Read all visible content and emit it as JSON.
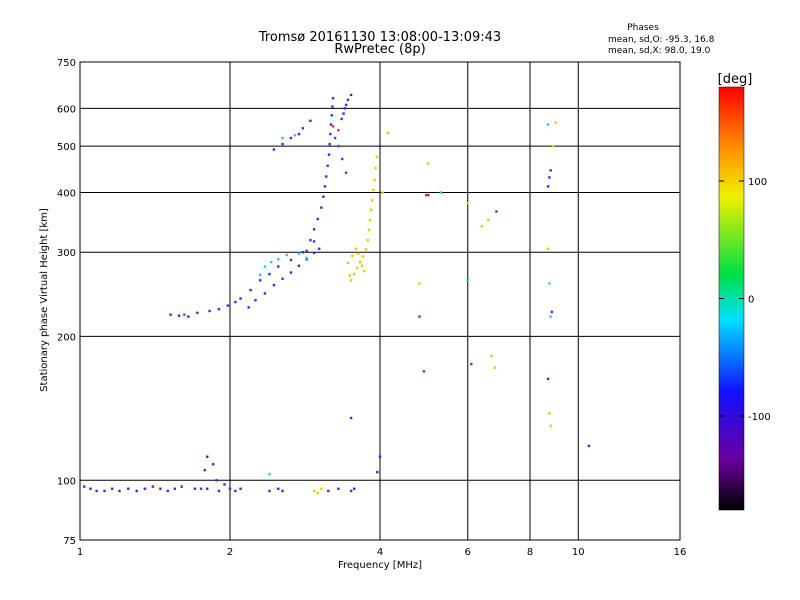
{
  "chart_data": {
    "type": "scatter",
    "title": "Tromsø 20161130 13:08:00-13:09:43",
    "subtitle": "RwPretec (8p)",
    "xlabel": "Frequency [MHz]",
    "ylabel": "Stationary phase Virtual Height [km]",
    "x_scale": "log",
    "y_scale": "log",
    "xlim": [
      1,
      16
    ],
    "ylim": [
      75,
      750
    ],
    "x_ticks": [
      1,
      2,
      4,
      6,
      8,
      10,
      16
    ],
    "y_ticks": [
      75,
      100,
      200,
      300,
      400,
      500,
      600,
      750
    ],
    "grid": true,
    "stats": {
      "title": "Phases",
      "line_o": "mean, sd,O: -95.3, 16.8",
      "line_x": "mean, sd,X:  98.0, 19.0"
    },
    "colorbar": {
      "label": "[deg]",
      "ticks": [
        100,
        0,
        -100
      ],
      "range": [
        -180,
        180
      ],
      "colormap": "rainbow: black→purple→blue→cyan→green→yellow→orange→red"
    },
    "series": [
      {
        "color": "#3030e0",
        "points": [
          [
            1.02,
            97
          ],
          [
            1.05,
            96
          ],
          [
            1.08,
            95
          ],
          [
            1.12,
            95
          ],
          [
            1.16,
            96
          ],
          [
            1.2,
            95
          ],
          [
            1.25,
            96
          ],
          [
            1.3,
            95
          ],
          [
            1.35,
            96
          ],
          [
            1.4,
            97
          ],
          [
            1.45,
            96
          ],
          [
            1.5,
            95
          ],
          [
            1.55,
            96
          ],
          [
            1.6,
            97
          ],
          [
            1.7,
            96
          ],
          [
            1.8,
            96
          ],
          [
            1.9,
            95
          ],
          [
            2.0,
            96
          ],
          [
            2.05,
            95
          ],
          [
            1.52,
            222
          ],
          [
            1.58,
            221
          ],
          [
            1.65,
            220
          ],
          [
            1.72,
            224
          ],
          [
            1.82,
            226
          ],
          [
            1.9,
            228
          ],
          [
            1.98,
            232
          ],
          [
            2.05,
            236
          ],
          [
            2.1,
            240
          ],
          [
            2.18,
            230
          ],
          [
            2.25,
            238
          ],
          [
            2.35,
            246
          ],
          [
            2.45,
            256
          ],
          [
            2.55,
            264
          ],
          [
            2.65,
            272
          ],
          [
            2.75,
            281
          ],
          [
            2.85,
            290
          ],
          [
            2.95,
            299
          ],
          [
            3.02,
            305
          ],
          [
            2.2,
            250
          ],
          [
            2.3,
            262
          ],
          [
            2.4,
            270
          ],
          [
            2.5,
            280
          ],
          [
            2.65,
            289
          ],
          [
            2.8,
            300
          ],
          [
            2.95,
            316
          ],
          [
            2.85,
            302
          ],
          [
            2.9,
            318
          ],
          [
            2.95,
            335
          ],
          [
            3.0,
            352
          ],
          [
            3.05,
            372
          ],
          [
            3.08,
            392
          ],
          [
            3.1,
            412
          ],
          [
            3.12,
            432
          ],
          [
            3.14,
            455
          ],
          [
            3.16,
            480
          ],
          [
            3.17,
            505
          ],
          [
            3.18,
            530
          ],
          [
            3.19,
            555
          ],
          [
            3.2,
            580
          ],
          [
            3.21,
            605
          ],
          [
            3.22,
            630
          ],
          [
            3.35,
            570
          ],
          [
            3.4,
            600
          ],
          [
            3.45,
            625
          ],
          [
            3.5,
            640
          ],
          [
            3.42,
            610
          ],
          [
            3.38,
            585
          ],
          [
            2.45,
            492
          ],
          [
            2.55,
            505
          ],
          [
            2.65,
            520
          ],
          [
            2.75,
            530
          ],
          [
            2.9,
            565
          ],
          [
            2.8,
            545
          ],
          [
            1.8,
            112
          ],
          [
            1.85,
            108
          ],
          [
            1.78,
            105
          ],
          [
            1.88,
            100
          ],
          [
            1.95,
            98
          ],
          [
            2.1,
            96
          ],
          [
            2.4,
            95
          ],
          [
            2.5,
            96
          ],
          [
            2.55,
            95
          ],
          [
            3.15,
            95
          ],
          [
            3.3,
            96
          ],
          [
            3.5,
            95
          ],
          [
            3.55,
            96
          ],
          [
            3.5,
            135
          ],
          [
            4.0,
            112
          ],
          [
            3.95,
            104
          ],
          [
            8.7,
            412
          ],
          [
            8.75,
            430
          ],
          [
            8.8,
            445
          ],
          [
            8.85,
            225
          ],
          [
            8.7,
            163
          ],
          [
            10.5,
            118
          ]
        ]
      },
      {
        "color": "#e8c800",
        "points": [
          [
            3.5,
            262
          ],
          [
            3.55,
            270
          ],
          [
            3.6,
            278
          ],
          [
            3.65,
            286
          ],
          [
            3.7,
            294
          ],
          [
            3.75,
            304
          ],
          [
            3.78,
            318
          ],
          [
            3.8,
            334
          ],
          [
            3.82,
            350
          ],
          [
            3.84,
            368
          ],
          [
            3.86,
            385
          ],
          [
            3.88,
            405
          ],
          [
            3.9,
            425
          ],
          [
            3.92,
            450
          ],
          [
            3.94,
            475
          ],
          [
            3.45,
            285
          ],
          [
            3.52,
            295
          ],
          [
            3.58,
            305
          ],
          [
            3.62,
            298
          ],
          [
            3.68,
            281
          ],
          [
            3.72,
            274
          ],
          [
            3.48,
            268
          ],
          [
            4.05,
            400
          ],
          [
            4.15,
            533
          ],
          [
            4.8,
            258
          ],
          [
            5.0,
            460
          ],
          [
            6.0,
            380
          ],
          [
            6.4,
            340
          ],
          [
            6.6,
            350
          ],
          [
            6.7,
            182
          ],
          [
            6.8,
            172
          ],
          [
            8.7,
            305
          ],
          [
            8.75,
            138
          ],
          [
            8.8,
            130
          ],
          [
            9.0,
            560
          ],
          [
            8.9,
            500
          ],
          [
            2.95,
            95
          ],
          [
            3.05,
            96
          ],
          [
            3.0,
            94
          ]
        ]
      },
      {
        "color": "#28c8e8",
        "points": [
          [
            2.35,
            280
          ],
          [
            2.42,
            286
          ],
          [
            2.5,
            290
          ],
          [
            2.6,
            296
          ],
          [
            2.75,
            298
          ],
          [
            2.85,
            292
          ],
          [
            2.3,
            269
          ],
          [
            2.55,
            520
          ],
          [
            2.7,
            527
          ],
          [
            5.3,
            400
          ],
          [
            6.0,
            262
          ],
          [
            8.7,
            555
          ],
          [
            8.75,
            258
          ],
          [
            8.8,
            220
          ],
          [
            2.4,
            103
          ]
        ]
      },
      {
        "color": "#8a20c0",
        "points": [
          [
            3.25,
            520
          ],
          [
            3.3,
            500
          ],
          [
            3.36,
            470
          ],
          [
            3.42,
            440
          ],
          [
            4.8,
            220
          ],
          [
            4.9,
            169
          ],
          [
            5.0,
            395
          ],
          [
            6.1,
            175
          ],
          [
            6.85,
            365
          ],
          [
            1.35,
            96
          ],
          [
            1.75,
            96
          ]
        ]
      },
      {
        "color": "#e83020",
        "points": [
          [
            3.22,
            550
          ],
          [
            3.3,
            540
          ],
          [
            4.95,
            395
          ],
          [
            1.62,
            222
          ]
        ]
      }
    ]
  }
}
